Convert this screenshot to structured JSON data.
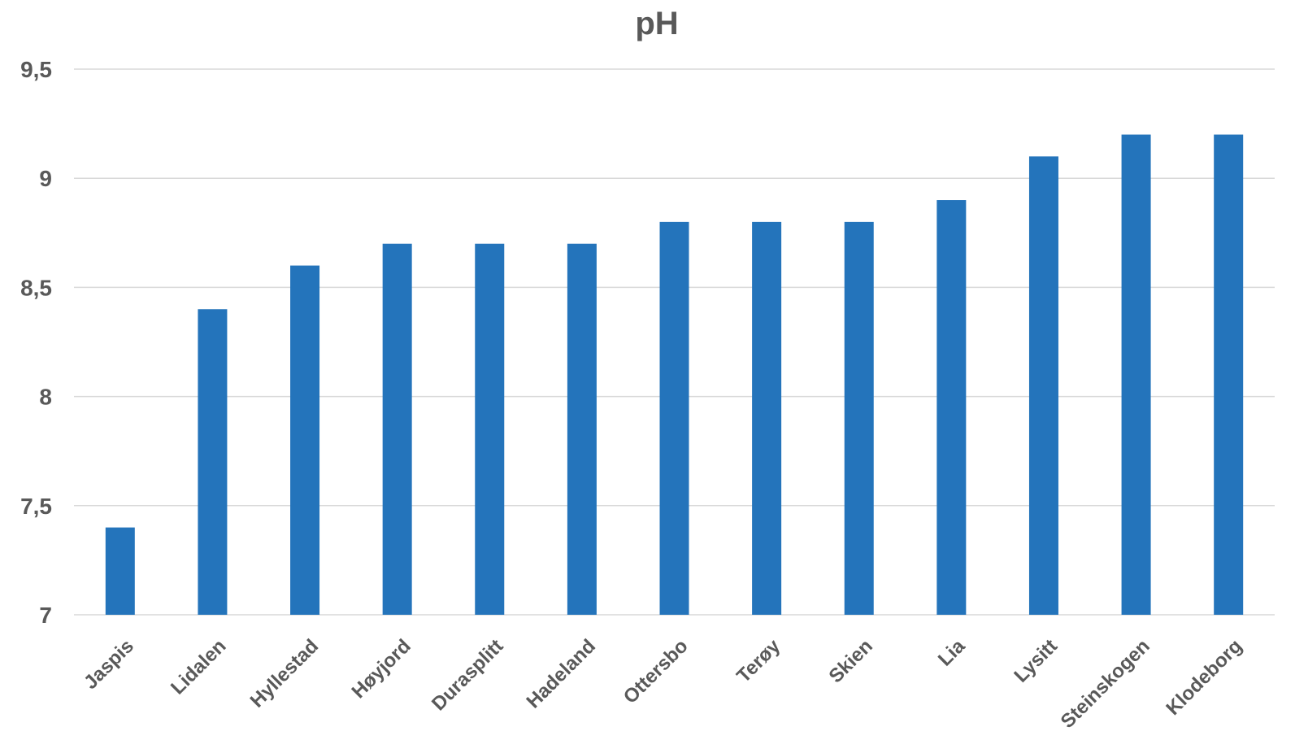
{
  "chart_data": {
    "type": "bar",
    "title": "pH",
    "xlabel": "",
    "ylabel": "",
    "ylim": [
      7,
      9.5
    ],
    "yticks": [
      7,
      7.5,
      8,
      8.5,
      9,
      9.5
    ],
    "ytick_labels": [
      "7",
      "7,5",
      "8",
      "8,5",
      "9",
      "9,5"
    ],
    "grid": true,
    "legend": "none",
    "categories": [
      "Jaspis",
      "Lidalen",
      "Hyllestad",
      "Høyjord",
      "Durasplitt",
      "Hadeland",
      "Ottersbo",
      "Terøy",
      "Skien",
      "Lia",
      "Lysitt",
      "Steinskogen",
      "Klodeborg"
    ],
    "values": [
      7.4,
      8.4,
      8.6,
      8.7,
      8.7,
      8.7,
      8.8,
      8.8,
      8.8,
      8.9,
      9.1,
      9.2,
      9.2
    ],
    "colors": {
      "bar": "#2474BB",
      "text": "#595959",
      "grid": "#D9D9D9"
    }
  }
}
